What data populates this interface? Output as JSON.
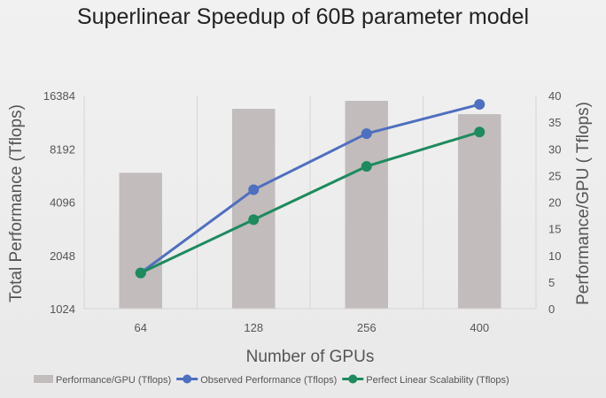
{
  "chart_data": {
    "type": "bar+line",
    "title": "Superlinear Speedup of 60B parameter model",
    "xlabel": "Number of GPUs",
    "ylabel_left": "Total Performance (Tflops)",
    "ylabel_right": "Performance/GPU ( Tflops)",
    "categories": [
      "64",
      "128",
      "256",
      "400"
    ],
    "left_axis": {
      "scale": "log2",
      "ylim": [
        1024,
        16384
      ],
      "ticks": [
        "1024",
        "2048",
        "4096",
        "8192",
        "16384"
      ]
    },
    "right_axis": {
      "scale": "linear",
      "ylim": [
        0,
        40
      ],
      "ticks": [
        "0",
        "5",
        "10",
        "15",
        "20",
        "25",
        "30",
        "35",
        "40"
      ]
    },
    "grid": "vertical",
    "legend_position": "bottom",
    "series": [
      {
        "name": "Performance/GPU (Tflops)",
        "kind": "bar",
        "axis": "right",
        "color": "#c2bcbc",
        "values": [
          25.5,
          37.5,
          39,
          36.5
        ]
      },
      {
        "name": "Observed Performance (Tflops)",
        "kind": "line",
        "axis": "left",
        "color": "#4f6fbf",
        "values": [
          1630,
          4810,
          9980,
          14600
        ]
      },
      {
        "name": "Perfect Linear Scalability (Tflops)",
        "kind": "line",
        "axis": "left",
        "color": "#1e8a5e",
        "values": [
          1630,
          3260,
          6520,
          10190
        ]
      }
    ]
  }
}
